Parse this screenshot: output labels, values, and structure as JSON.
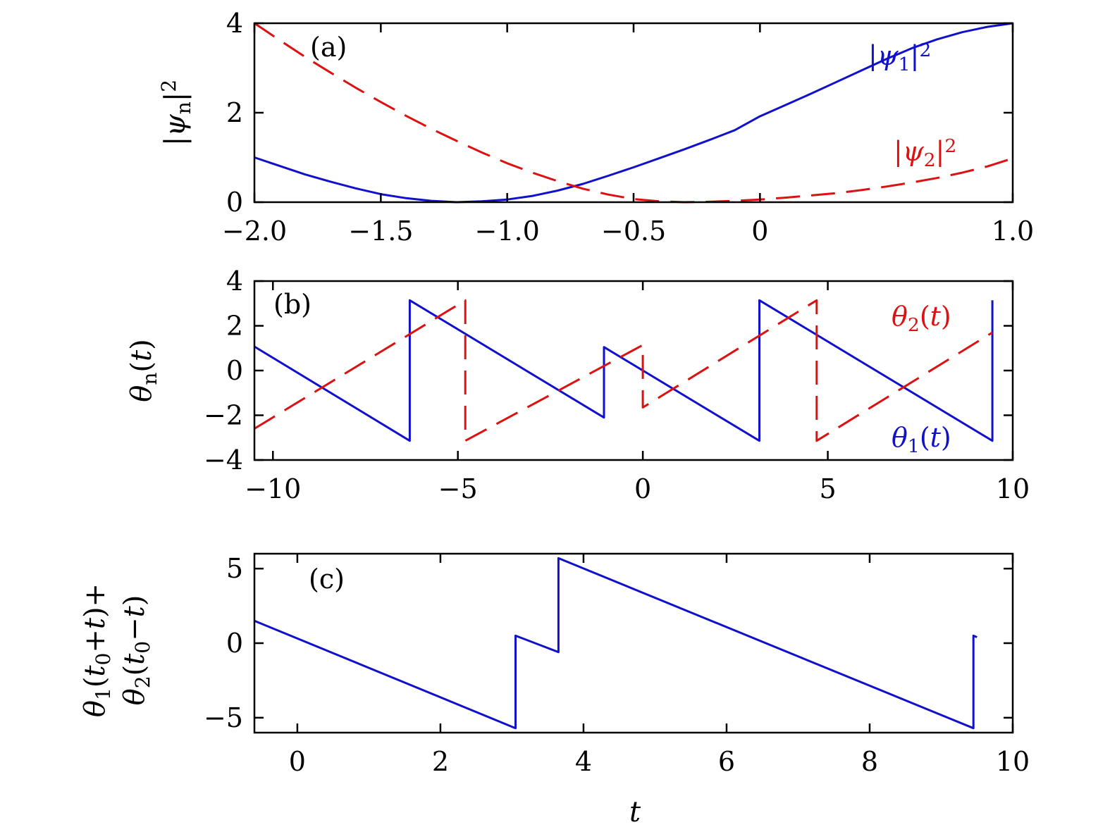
{
  "colors": {
    "series_1": "#1111cc",
    "series_2": "#dd1111"
  },
  "chart_data": [
    {
      "type": "line",
      "panel_label": "(a)",
      "ylabel": "|ψn|2",
      "xlim": [
        -2.0,
        1.0
      ],
      "ylim": [
        0,
        4
      ],
      "xticks": [
        -2.0,
        -1.5,
        -1.0,
        -0.5,
        0,
        1.0
      ],
      "xtick_labels": [
        "−2.0",
        "−1.5",
        "−1.0",
        "−0.5",
        "0",
        "1.0"
      ],
      "yticks": [
        0,
        2,
        4
      ],
      "ytick_labels": [
        "0",
        "2",
        "4"
      ],
      "grid": false,
      "series": [
        {
          "name": "|ψ1|2",
          "style": "solid",
          "x": [
            -2.0,
            -1.9,
            -1.8,
            -1.7,
            -1.6,
            -1.5,
            -1.4,
            -1.3,
            -1.2,
            -1.1,
            -1.0,
            -0.9,
            -0.8,
            -0.7,
            -0.6,
            -0.5,
            -0.4,
            -0.3,
            -0.2,
            -0.1,
            0.0,
            0.1,
            0.2,
            0.3,
            0.4,
            0.5,
            0.6,
            0.7,
            0.8,
            0.9,
            1.0
          ],
          "values": [
            1.0,
            0.81,
            0.62,
            0.46,
            0.31,
            0.18,
            0.09,
            0.03,
            0.0,
            0.02,
            0.06,
            0.14,
            0.26,
            0.41,
            0.59,
            0.78,
            0.98,
            1.18,
            1.39,
            1.61,
            1.92,
            2.17,
            2.42,
            2.68,
            2.94,
            3.2,
            3.44,
            3.64,
            3.8,
            3.92,
            4.0
          ]
        },
        {
          "name": "|ψ2|2",
          "style": "dashed",
          "x": [
            -2.0,
            -1.9,
            -1.8,
            -1.7,
            -1.6,
            -1.5,
            -1.4,
            -1.3,
            -1.2,
            -1.1,
            -1.0,
            -0.9,
            -0.8,
            -0.7,
            -0.6,
            -0.5,
            -0.4,
            -0.3,
            -0.2,
            -0.1,
            0.0,
            0.1,
            0.2,
            0.3,
            0.4,
            0.5,
            0.6,
            0.7,
            0.8,
            0.9,
            1.0
          ],
          "values": [
            4.0,
            3.62,
            3.25,
            2.9,
            2.56,
            2.24,
            1.93,
            1.64,
            1.37,
            1.11,
            0.87,
            0.66,
            0.47,
            0.3,
            0.17,
            0.07,
            0.02,
            0.0,
            0.01,
            0.03,
            0.06,
            0.1,
            0.15,
            0.2,
            0.27,
            0.35,
            0.44,
            0.54,
            0.66,
            0.8,
            0.98
          ]
        }
      ]
    },
    {
      "type": "line",
      "panel_label": "(b)",
      "ylabel": "θn(t)",
      "xlim": [
        -10.5,
        10
      ],
      "ylim": [
        -4,
        4
      ],
      "xticks": [
        -10,
        -5,
        0,
        5,
        10
      ],
      "xtick_labels": [
        "−10",
        "−5",
        "0",
        "5",
        "10"
      ],
      "yticks": [
        -4,
        -2,
        0,
        2,
        4
      ],
      "ytick_labels": [
        "−4",
        "−2",
        "0",
        "2",
        "4"
      ],
      "grid": false,
      "series": [
        {
          "name": "θ1(t)",
          "style": "solid",
          "x": [
            -10.5,
            -6.3,
            -6.3,
            -1.05,
            -1.05,
            3.15,
            3.15,
            9.45,
            9.45
          ],
          "values": [
            1.07,
            -3.14,
            3.14,
            -2.1,
            1.05,
            -3.14,
            3.14,
            -3.14,
            3.14
          ]
        },
        {
          "name": "θ2(t)",
          "style": "dashed",
          "x": [
            -10.5,
            -4.8,
            -4.8,
            0.0,
            0.0,
            4.7,
            4.7,
            9.45
          ],
          "values": [
            -2.6,
            3.14,
            -3.14,
            1.14,
            -1.65,
            3.14,
            -3.14,
            1.7
          ]
        }
      ]
    },
    {
      "type": "line",
      "panel_label": "(c)",
      "ylabel_lines": [
        "θ1(t0+t)+",
        "θ2(t0−t)"
      ],
      "xlabel": "t",
      "xlim": [
        -0.6,
        10
      ],
      "ylim": [
        -6,
        6
      ],
      "xticks": [
        0,
        2,
        4,
        6,
        8,
        10
      ],
      "xtick_labels": [
        "0",
        "2",
        "4",
        "6",
        "8",
        "10"
      ],
      "yticks": [
        -5,
        0,
        5
      ],
      "ytick_labels": [
        "−5",
        "0",
        "5"
      ],
      "grid": false,
      "series": [
        {
          "name": "",
          "style": "solid",
          "x": [
            -0.6,
            3.05,
            3.05,
            3.65,
            3.65,
            9.45,
            9.45,
            9.5
          ],
          "values": [
            1.5,
            -5.7,
            0.5,
            -0.6,
            5.7,
            -5.7,
            0.5,
            0.4
          ]
        }
      ]
    }
  ]
}
